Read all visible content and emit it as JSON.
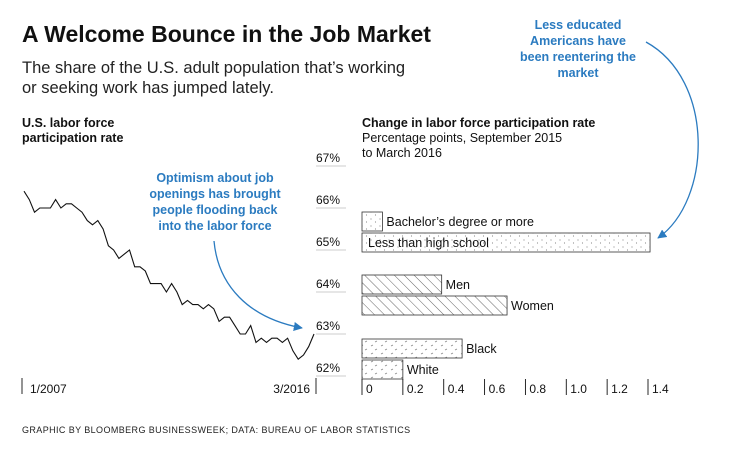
{
  "title": "A Welcome Bounce in the Job Market",
  "subtitle_lines": [
    "The share of the U.S. adult population that’s working",
    "or seeking work has jumped lately."
  ],
  "source": "GRAPHIC BY BLOOMBERG BUSINESSWEEK; DATA: BUREAU OF LABOR STATISTICS",
  "accent_color": "#2b7bc0",
  "chart_data": [
    {
      "type": "line",
      "title_lines": [
        "U.S. labor force",
        "participation rate"
      ],
      "x_tick_labels": [
        "1/2007",
        "3/2016"
      ],
      "y_tick_labels": [
        "67%",
        "66%",
        "65%",
        "64%",
        "63%",
        "62%"
      ],
      "ylim": [
        62,
        67
      ],
      "annotation_lines": [
        "Optimism about job",
        "openings has brought",
        "people flooding back",
        "into the labor force"
      ],
      "series": [
        {
          "x": [
            "2007-01",
            "2007-03",
            "2007-05",
            "2007-07",
            "2007-09",
            "2007-11",
            "2008-01",
            "2008-03",
            "2008-05",
            "2008-07",
            "2008-09",
            "2008-11",
            "2009-01",
            "2009-03",
            "2009-05",
            "2009-07",
            "2009-09",
            "2009-11",
            "2010-01",
            "2010-03",
            "2010-05",
            "2010-07",
            "2010-09",
            "2010-11",
            "2011-01",
            "2011-03",
            "2011-05",
            "2011-07",
            "2011-09",
            "2011-11",
            "2012-01",
            "2012-03",
            "2012-05",
            "2012-07",
            "2012-09",
            "2012-11",
            "2013-01",
            "2013-03",
            "2013-05",
            "2013-07",
            "2013-09",
            "2013-11",
            "2014-01",
            "2014-03",
            "2014-05",
            "2014-07",
            "2014-09",
            "2014-11",
            "2015-01",
            "2015-03",
            "2015-05",
            "2015-07",
            "2015-09",
            "2015-11",
            "2016-01",
            "2016-03"
          ],
          "values": [
            66.4,
            66.2,
            65.9,
            66.0,
            66.0,
            66.0,
            66.2,
            66.0,
            66.1,
            66.1,
            66.0,
            65.9,
            65.7,
            65.6,
            65.7,
            65.5,
            65.1,
            65.0,
            64.8,
            64.9,
            65.0,
            64.6,
            64.6,
            64.5,
            64.2,
            64.2,
            64.2,
            64.0,
            64.2,
            64.0,
            63.7,
            63.8,
            63.7,
            63.7,
            63.6,
            63.7,
            63.6,
            63.3,
            63.4,
            63.4,
            63.2,
            63.0,
            63.0,
            63.2,
            62.8,
            62.9,
            62.8,
            62.9,
            62.9,
            62.8,
            62.9,
            62.6,
            62.4,
            62.5,
            62.7,
            63.0
          ]
        }
      ]
    },
    {
      "type": "bar",
      "title": "Change in labor force participation rate",
      "subtitle_lines": [
        "Percentage points, September 2015",
        "to March 2016"
      ],
      "categories": [
        "Bachelor’s degree or more",
        "Less than high school",
        "Men",
        "Women",
        "Black",
        "White"
      ],
      "values": [
        0.1,
        1.41,
        0.39,
        0.71,
        0.49,
        0.2
      ],
      "x_tick_labels": [
        "0",
        "0.2",
        "0.4",
        "0.6",
        "0.8",
        "1.0",
        "1.2",
        "1.4"
      ],
      "xlim": [
        0,
        1.4
      ],
      "annotation_lines": [
        "Less educated",
        "Americans have",
        "been reentering the",
        "market"
      ]
    }
  ]
}
